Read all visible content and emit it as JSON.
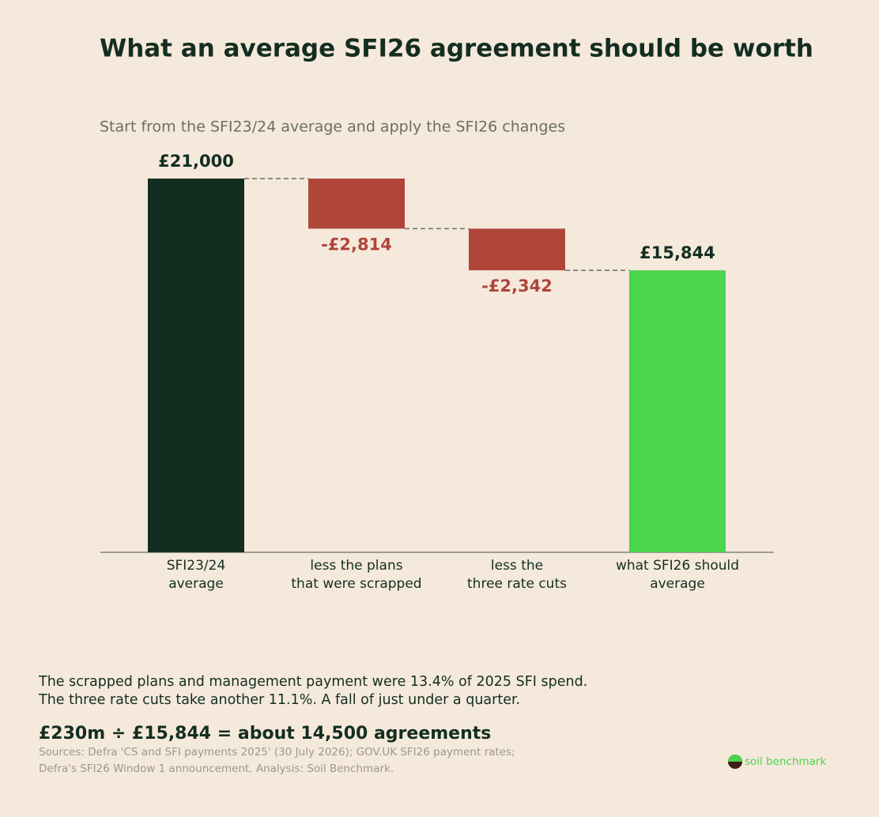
{
  "chart_data": {
    "type": "waterfall",
    "title": "What an average SFI26 agreement should be worth",
    "subtitle": "Start from the SFI23/24 average and apply the SFI26 changes",
    "categories": [
      [
        "SFI23/24",
        "average"
      ],
      [
        "less the plans",
        "that were scrapped"
      ],
      [
        "less the",
        "three rate cuts"
      ],
      [
        "what SFI26 should",
        "average"
      ]
    ],
    "measures": [
      "absolute",
      "relative",
      "relative",
      "total"
    ],
    "values": [
      21000,
      -2814,
      -2342,
      15844
    ],
    "value_labels": [
      "£21,000",
      "-£2,814",
      "-£2,342",
      "£15,844"
    ],
    "colors": {
      "absolute": "#132e21",
      "decrease": "#b0453a",
      "total": "#4cd44c"
    },
    "ylim": [
      0,
      21000
    ],
    "notes": [
      "The scrapped plans and management payment were 13.4% of 2025 SFI spend.",
      "The three rate cuts take another 11.1%. A fall of just under a quarter."
    ],
    "headline": "£230m ÷ £15,844  =  about 14,500 agreements",
    "sources": [
      "Sources: Defra 'CS and SFI payments 2025' (30 July 2026); GOV.UK SFI26 payment rates;",
      "Defra's SFI26 Window 1 announcement. Analysis: Soil Benchmark."
    ],
    "brand": "soil benchmark"
  }
}
